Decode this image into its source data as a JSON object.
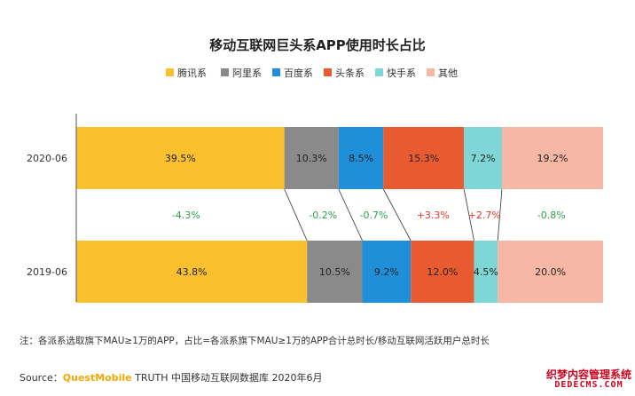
{
  "chart_data": {
    "type": "bar",
    "orientation": "horizontal",
    "stacked": true,
    "title": "移动互联网巨头系APP使用时长占比",
    "legend_position": "top",
    "categories": [
      "2020-06",
      "2019-06"
    ],
    "series": [
      {
        "name": "腾讯系",
        "color": "#fbc02d",
        "values": [
          39.5,
          43.8
        ],
        "labels": [
          "39.5%",
          "43.8%"
        ]
      },
      {
        "name": "阿里系",
        "color": "#8a8a8a",
        "values": [
          10.3,
          10.5
        ],
        "labels": [
          "10.3%",
          "10.5%"
        ]
      },
      {
        "name": "百度系",
        "color": "#1e8fd8",
        "values": [
          8.5,
          9.2
        ],
        "labels": [
          "8.5%",
          "9.2%"
        ]
      },
      {
        "name": "头条系",
        "color": "#e85a30",
        "values": [
          15.3,
          12.0
        ],
        "labels": [
          "15.3%",
          "12.0%"
        ]
      },
      {
        "name": "快手系",
        "color": "#7fd6d6",
        "values": [
          7.2,
          4.5
        ],
        "labels": [
          "7.2%",
          "4.5%"
        ]
      },
      {
        "name": "其他",
        "color": "#f7b7a5",
        "values": [
          19.2,
          20.0
        ],
        "labels": [
          "19.2%",
          "20.0%"
        ]
      }
    ],
    "changes": [
      {
        "label": "-4.3%",
        "color": "#2e9e48"
      },
      {
        "label": "-0.2%",
        "color": "#2e9e48"
      },
      {
        "label": "-0.7%",
        "color": "#2e9e48"
      },
      {
        "label": "+3.3%",
        "color": "#e0362a"
      },
      {
        "label": "+2.7%",
        "color": "#e0362a"
      },
      {
        "label": "-0.8%",
        "color": "#2e9e48"
      }
    ],
    "xlim": [
      0,
      100
    ]
  },
  "footer": {
    "note": "注：各派系选取旗下MAU≥1万的APP，占比=各派系旗下MAU≥1万的APP合计总时长/移动互联网活跃用户总时长",
    "source_prefix": "Source：",
    "source_brand": "QuestMobile",
    "source_rest": " TRUTH 中国移动互联网数据库 2020年6月"
  },
  "watermark": {
    "line1": "织梦内容管理系统",
    "line2": "DEDECMS.COM"
  }
}
